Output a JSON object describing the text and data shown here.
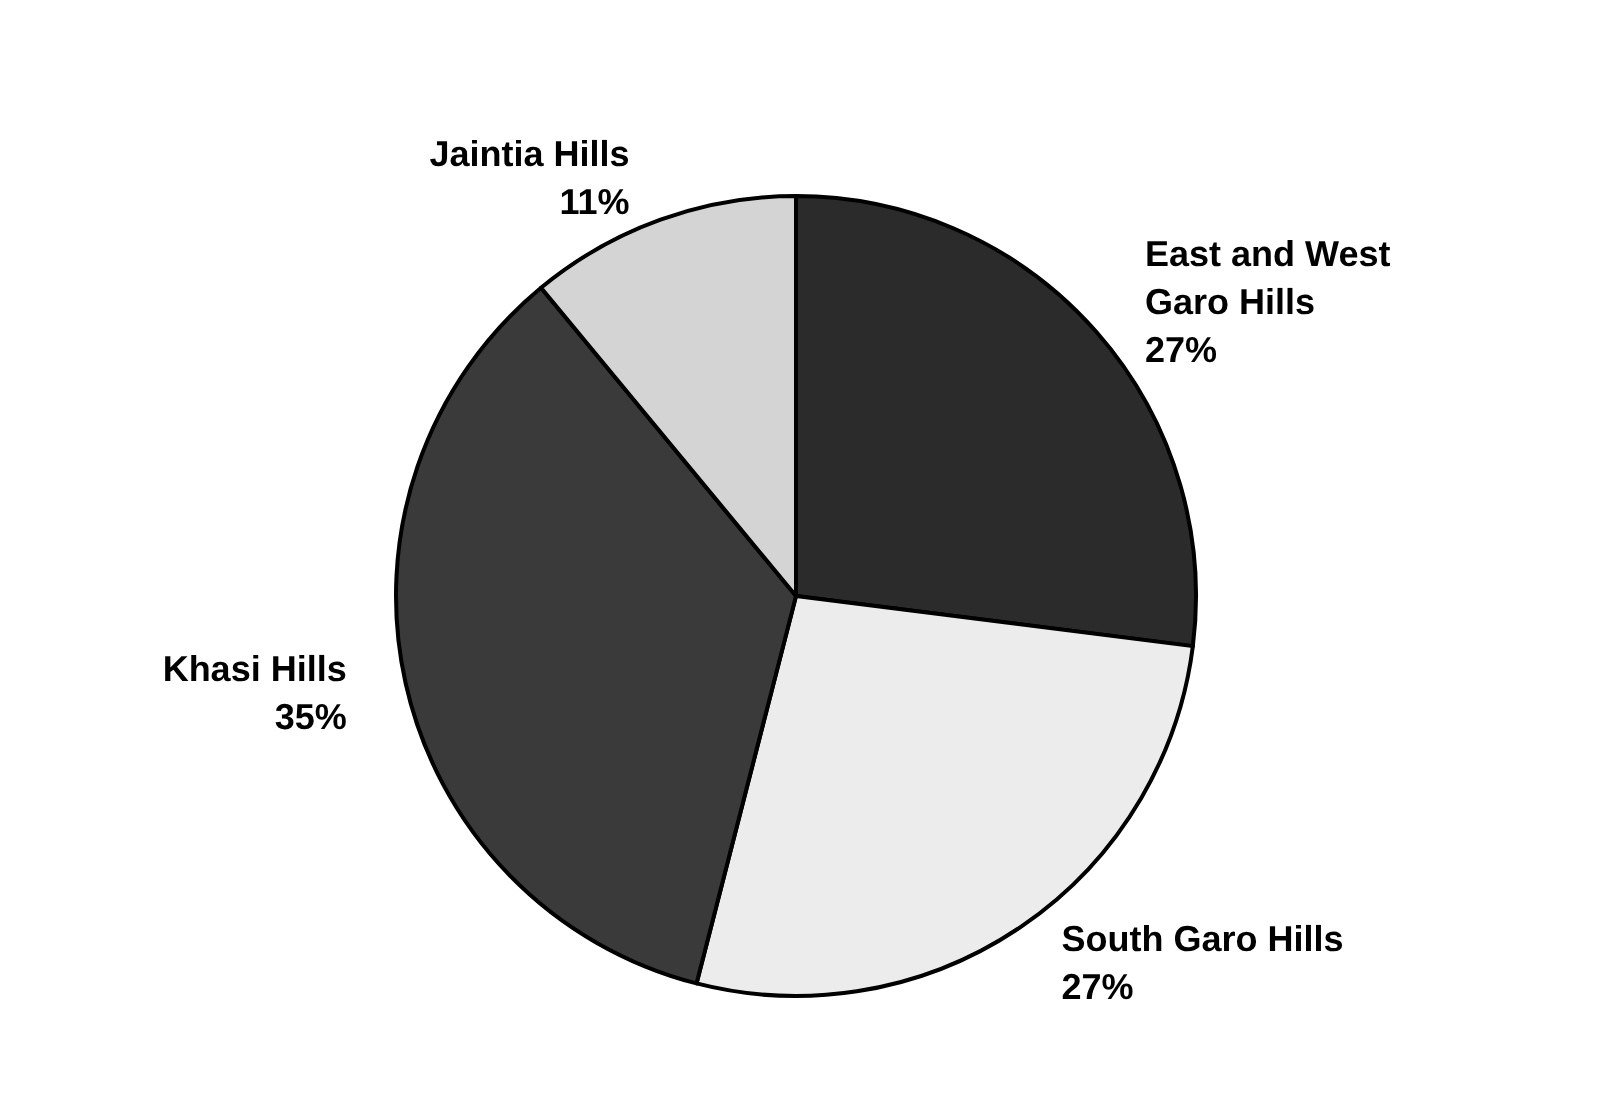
{
  "chart_data": {
    "type": "pie",
    "categories": [
      "East and West Garo Hills",
      "South Garo Hills",
      "Khasi Hills",
      "Jaintia Hills"
    ],
    "values": [
      27,
      27,
      35,
      11
    ],
    "colors": [
      "#2b2b2b",
      "#ececec",
      "#3a3a3a",
      "#d4d4d4"
    ],
    "value_labels": [
      "27%",
      "27%",
      "35%",
      "11%"
    ]
  }
}
